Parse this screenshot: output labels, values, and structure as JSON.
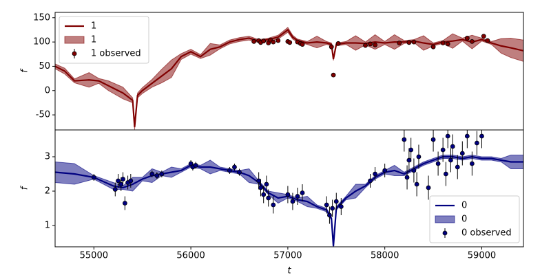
{
  "chart_data": [
    {
      "type": "line",
      "ylabel": "f",
      "xlim": [
        54600,
        59430
      ],
      "ylim": [
        -81,
        161
      ],
      "yticks": [
        -50,
        0,
        50,
        100,
        150
      ],
      "legend": "upper-left",
      "x": [
        54600,
        54700,
        54800,
        54950,
        55050,
        55150,
        55300,
        55400,
        55420,
        55450,
        55500,
        55600,
        55700,
        55800,
        55900,
        56000,
        56100,
        56200,
        56300,
        56400,
        56500,
        56600,
        56700,
        56800,
        56900,
        57000,
        57050,
        57100,
        57200,
        57300,
        57400,
        57450,
        57470,
        57500,
        57600,
        57700,
        57800,
        57900,
        58000,
        58100,
        58200,
        58300,
        58400,
        58500,
        58600,
        58700,
        58800,
        58900,
        59000,
        59100,
        59200,
        59300,
        59430
      ],
      "series": [
        {
          "name": "1",
          "style": "line",
          "color": "#800000",
          "values": [
            50,
            40,
            20,
            22,
            20,
            10,
            -5,
            -20,
            -75,
            -10,
            0,
            15,
            30,
            45,
            70,
            80,
            70,
            85,
            90,
            100,
            105,
            108,
            102,
            105,
            110,
            125,
            110,
            103,
            98,
            100,
            98,
            95,
            65,
            95,
            98,
            98,
            97,
            100,
            98,
            100,
            100,
            102,
            98,
            95,
            100,
            102,
            105,
            100,
            105,
            98,
            92,
            88,
            82
          ]
        },
        {
          "name": "1",
          "style": "band",
          "color": "#800000",
          "upper": [
            55,
            46,
            24,
            37,
            25,
            20,
            7,
            -15,
            -70,
            -5,
            6,
            23,
            44,
            63,
            76,
            85,
            74,
            97,
            94,
            104,
            109,
            112,
            105,
            108,
            114,
            130,
            114,
            106,
            101,
            112,
            101,
            98,
            68,
            98,
            101,
            113,
            100,
            115,
            101,
            115,
            103,
            105,
            113,
            98,
            103,
            117,
            108,
            114,
            108,
            101,
            107,
            108,
            104
          ],
          "lower": [
            45,
            34,
            16,
            7,
            15,
            0,
            -17,
            -25,
            -80,
            -15,
            -6,
            7,
            16,
            27,
            64,
            75,
            66,
            73,
            86,
            96,
            101,
            104,
            99,
            102,
            106,
            120,
            106,
            100,
            95,
            88,
            95,
            92,
            62,
            92,
            95,
            83,
            94,
            85,
            95,
            85,
            97,
            99,
            83,
            92,
            97,
            87,
            102,
            86,
            102,
            95,
            77,
            68,
            60
          ]
        },
        {
          "name": "1 observed",
          "style": "errorbar",
          "color": "#800000",
          "x": [
            56650,
            56700,
            56720,
            56750,
            56800,
            56820,
            56850,
            56900,
            57000,
            57020,
            57100,
            57130,
            57150,
            57450,
            57470,
            57520,
            57800,
            57850,
            57900,
            58150,
            58250,
            58300,
            58500,
            58600,
            58650,
            58850,
            58900,
            59020,
            59060
          ],
          "values": [
            101,
            103,
            99,
            102,
            98,
            104,
            100,
            103,
            101,
            99,
            100,
            97,
            95,
            90,
            32,
            97,
            93,
            96,
            94,
            98,
            99,
            100,
            90,
            98,
            96,
            108,
            101,
            112,
            103
          ],
          "errors": [
            2,
            2,
            2,
            2,
            2,
            2,
            2,
            2,
            2,
            2,
            2,
            2,
            2,
            2,
            2,
            2,
            2,
            2,
            2,
            2,
            2,
            2,
            2,
            2,
            2,
            2,
            2,
            2,
            2
          ]
        }
      ]
    },
    {
      "type": "line",
      "xlabel": "t",
      "ylabel": "f",
      "xlim": [
        54600,
        59430
      ],
      "ylim": [
        0.38,
        3.78
      ],
      "xticks": [
        55000,
        56000,
        57000,
        58000,
        59000
      ],
      "yticks": [
        1,
        2,
        3
      ],
      "legend": "lower-right",
      "x": [
        54600,
        54800,
        55000,
        55200,
        55300,
        55400,
        55500,
        55600,
        55700,
        55800,
        55900,
        56000,
        56100,
        56200,
        56300,
        56400,
        56500,
        56600,
        56700,
        56800,
        56900,
        57000,
        57100,
        57200,
        57300,
        57400,
        57450,
        57470,
        57500,
        57600,
        57700,
        57800,
        57900,
        58000,
        58100,
        58200,
        58300,
        58400,
        58500,
        58600,
        58700,
        58800,
        58900,
        59000,
        59100,
        59200,
        59300,
        59430
      ],
      "series": [
        {
          "name": "0",
          "style": "line",
          "color": "#000080",
          "values": [
            2.55,
            2.5,
            2.4,
            2.15,
            2.1,
            2.2,
            2.35,
            2.45,
            2.5,
            2.55,
            2.6,
            2.75,
            2.7,
            2.7,
            2.65,
            2.6,
            2.55,
            2.45,
            2.25,
            1.95,
            1.8,
            1.85,
            1.75,
            1.7,
            1.55,
            1.45,
            1.2,
            0.4,
            1.5,
            1.8,
            2.0,
            2.15,
            2.4,
            2.55,
            2.6,
            2.5,
            2.65,
            2.8,
            2.9,
            3.0,
            3.0,
            2.95,
            3.0,
            2.95,
            2.95,
            2.9,
            2.85,
            2.85
          ]
        },
        {
          "name": "0",
          "style": "band",
          "color": "#000080",
          "upper": [
            2.85,
            2.8,
            2.45,
            2.25,
            2.15,
            2.4,
            2.4,
            2.65,
            2.55,
            2.7,
            2.65,
            2.8,
            2.75,
            2.9,
            2.7,
            2.65,
            2.6,
            2.65,
            2.3,
            2.0,
            1.95,
            1.9,
            1.8,
            1.85,
            1.6,
            1.5,
            1.25,
            0.45,
            1.55,
            1.85,
            2.2,
            2.2,
            2.45,
            2.6,
            2.75,
            2.55,
            2.7,
            2.85,
            2.95,
            3.05,
            3.05,
            3.0,
            3.05,
            3.0,
            3.0,
            2.95,
            3.05,
            3.05
          ],
          "lower": [
            2.25,
            2.2,
            2.35,
            2.05,
            2.05,
            2.0,
            2.3,
            2.25,
            2.45,
            2.4,
            2.55,
            2.7,
            2.65,
            2.5,
            2.6,
            2.55,
            2.5,
            2.25,
            2.2,
            1.9,
            1.65,
            1.8,
            1.7,
            1.55,
            1.5,
            1.4,
            1.15,
            0.35,
            1.45,
            1.75,
            1.8,
            2.1,
            2.35,
            2.5,
            2.45,
            2.45,
            2.6,
            2.75,
            2.85,
            2.95,
            2.95,
            2.9,
            2.95,
            2.9,
            2.9,
            2.85,
            2.65,
            2.65
          ]
        },
        {
          "name": "0 observed",
          "style": "errorbar",
          "color": "#000080",
          "x": [
            55000,
            55220,
            55250,
            55280,
            55300,
            55320,
            55350,
            55380,
            55600,
            55650,
            55700,
            56000,
            56020,
            56050,
            56400,
            56450,
            56500,
            56700,
            56720,
            56750,
            56780,
            56800,
            56850,
            57000,
            57050,
            57100,
            57150,
            57400,
            57430,
            57460,
            57500,
            57550,
            57850,
            57900,
            58000,
            58200,
            58230,
            58250,
            58270,
            58300,
            58330,
            58350,
            58450,
            58500,
            58550,
            58600,
            58630,
            58650,
            58680,
            58700,
            58750,
            58800,
            58850,
            58900,
            58950,
            59000
          ],
          "values": [
            2.4,
            2.05,
            2.3,
            2.2,
            2.35,
            1.65,
            2.25,
            2.3,
            2.5,
            2.45,
            2.5,
            2.8,
            2.7,
            2.75,
            2.6,
            2.7,
            2.55,
            2.3,
            2.1,
            1.9,
            2.2,
            1.8,
            1.6,
            1.9,
            1.7,
            1.85,
            1.95,
            1.6,
            1.3,
            1.5,
            1.7,
            1.55,
            2.3,
            2.5,
            2.6,
            3.5,
            2.4,
            2.9,
            3.2,
            2.6,
            2.2,
            3.0,
            2.1,
            3.5,
            2.8,
            3.2,
            2.5,
            3.6,
            2.9,
            3.3,
            2.7,
            3.1,
            3.6,
            2.8,
            3.4,
            3.6
          ],
          "errors": [
            0.1,
            0.2,
            0.2,
            0.2,
            0.2,
            0.2,
            0.2,
            0.2,
            0.1,
            0.1,
            0.1,
            0.1,
            0.1,
            0.1,
            0.1,
            0.1,
            0.1,
            0.25,
            0.25,
            0.25,
            0.25,
            0.25,
            0.25,
            0.25,
            0.25,
            0.25,
            0.25,
            0.25,
            0.25,
            0.25,
            0.25,
            0.25,
            0.2,
            0.2,
            0.2,
            0.35,
            0.35,
            0.35,
            0.35,
            0.35,
            0.35,
            0.35,
            0.35,
            0.35,
            0.35,
            0.35,
            0.35,
            0.35,
            0.35,
            0.35,
            0.35,
            0.35,
            0.35,
            0.35,
            0.35,
            0.35
          ]
        }
      ]
    }
  ]
}
